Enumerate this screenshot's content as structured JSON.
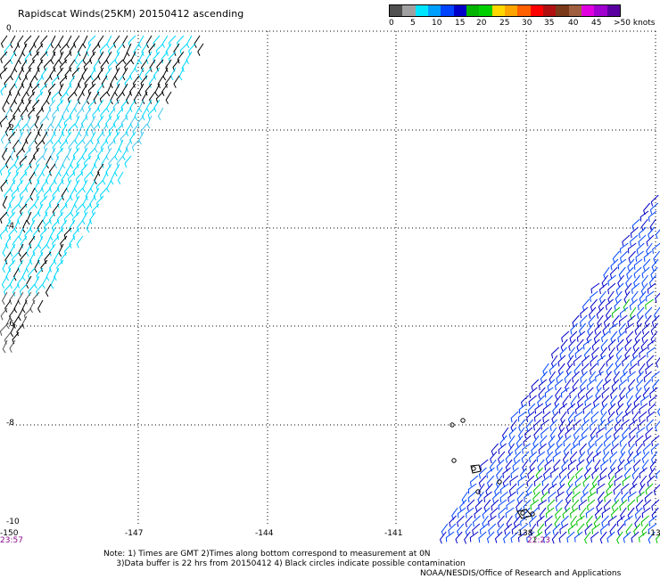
{
  "title": "Rapidscat Winds(25KM) 20150412 ascending",
  "colorbar": {
    "segments": [
      "#505050",
      "#a0a0a0",
      "#00e6ff",
      "#00a0ff",
      "#0044ff",
      "#0000c8",
      "#00b400",
      "#00d000",
      "#ffd700",
      "#ffa500",
      "#ff6000",
      "#ff0000",
      "#b01010",
      "#7a3a1a",
      "#a06040",
      "#e000e0",
      "#a000d0",
      "#5a00a0"
    ],
    "labels": [
      "0",
      "5",
      "10",
      "15",
      "20",
      "25",
      "30",
      "35",
      "40",
      "45",
      ">50 knots"
    ]
  },
  "axes": {
    "lat_labels": [
      "0",
      "-2",
      "-4",
      "-6",
      "-8",
      "-10"
    ],
    "lon_labels": [
      "-150",
      "-147",
      "-144",
      "-141",
      "-138",
      "-13"
    ]
  },
  "times": {
    "left": "23:57",
    "right": "22:23"
  },
  "notes": {
    "line1": "Note: 1) Times are GMT 2)Times along bottom correspond to measurement at 0N",
    "line2": "3)Data buffer is 22 hrs from 20150412 4) Black circles indicate possible contamination"
  },
  "credit": "NOAA/NESDIS/Office of Research and Applications"
}
